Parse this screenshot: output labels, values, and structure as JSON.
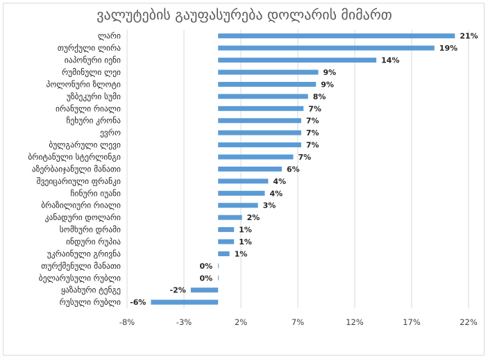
{
  "chart_data": {
    "type": "bar",
    "orientation": "horizontal",
    "title": "ვალუტების გაუფასურება დოლარის მიმართ",
    "categories": [
      "ლარი",
      "თურქული ლირა",
      "იაპონური იენი",
      "რუმინული ლეი",
      "პოლონური ზლოტი",
      "უზბეკური სუმი",
      "ირანული რიალი",
      "ჩეხური კრონა",
      "ევრო",
      "ბულგარული ლევი",
      "ბრიტანული სტერლინგი",
      "აზერბაიჯანული მანათი",
      "შვეიცარიული ფრანკი",
      "ჩინური იუანი",
      "ბრაზილიური რიალი",
      "კანადური დოლარი",
      "სომხური დრამი",
      "ინდური რუპია",
      "უკრაინული გრივნა",
      "თურქმენული მანათი",
      "ბელარუსული რუბლი",
      "ყაზახური ტენგე",
      "რუსული რუბლი"
    ],
    "values": [
      20.8,
      19.0,
      13.9,
      8.8,
      8.6,
      7.9,
      7.5,
      7.3,
      7.3,
      7.3,
      6.6,
      5.6,
      4.4,
      4.1,
      3.5,
      2.1,
      1.4,
      1.4,
      1.0,
      0.0,
      0.0,
      -2.4,
      -5.9
    ],
    "value_labels": [
      "21%",
      "19%",
      "14%",
      "9%",
      "9%",
      "8%",
      "7%",
      "7%",
      "7%",
      "7%",
      "7%",
      "6%",
      "4%",
      "4%",
      "3%",
      "2%",
      "1%",
      "1%",
      "1%",
      "0%",
      "0%",
      "-2%",
      "-6%"
    ],
    "xlim": [
      -8,
      22
    ],
    "x_ticks": [
      -8,
      -3,
      2,
      7,
      12,
      17,
      22
    ],
    "x_tick_labels": [
      "-8%",
      "-3%",
      "2%",
      "7%",
      "12%",
      "17%",
      "22%"
    ],
    "xlabel": "",
    "ylabel": "",
    "grid": "vertical",
    "legend": "none",
    "bar_color": "#5b9bd5"
  }
}
